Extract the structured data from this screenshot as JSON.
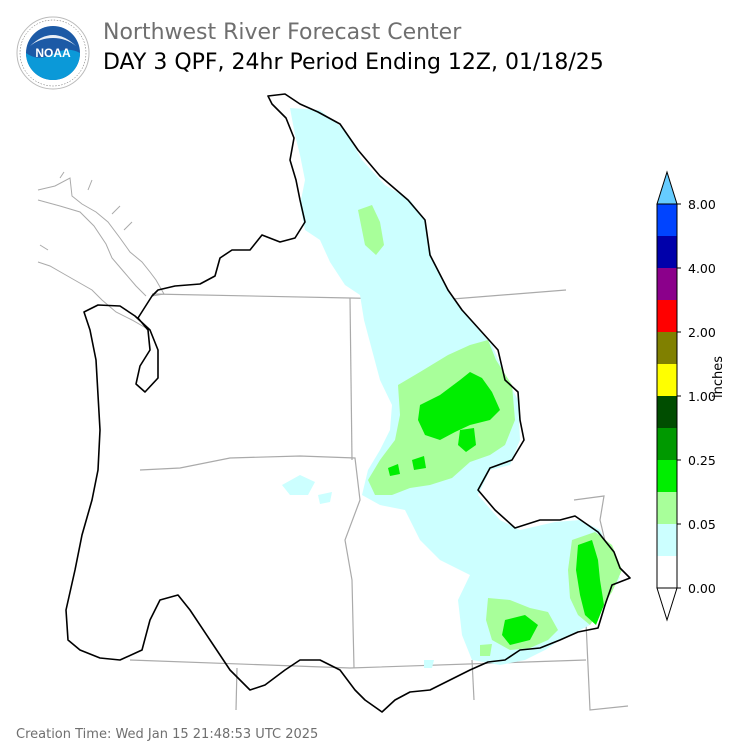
{
  "header": {
    "title": "Northwest River Forecast Center",
    "subtitle": "DAY 3 QPF, 24hr Period Ending 12Z, 01/18/25"
  },
  "logo": {
    "text": "NOAA",
    "ring_text": "NATIONAL OCEANIC AND ATMOSPHERIC ADMINISTRATION · U.S. DEPARTMENT OF COMMERCE"
  },
  "legend": {
    "unit": "inches",
    "tick_labels": [
      "8.00",
      "4.00",
      "2.00",
      "1.00",
      "0.25",
      "0.05",
      "0.00"
    ],
    "colors": [
      "#ffffff",
      "#ccffff",
      "#a8ff9a",
      "#00ee00",
      "#009900",
      "#004d00",
      "#ffff00",
      "#808000",
      "#ff0000",
      "#8b008b",
      "#0000aa",
      "#0044ff",
      "#66ccff"
    ]
  },
  "footer": {
    "creation": "Creation Time: Wed Jan 15 21:48:53 UTC 2025"
  },
  "colors": {
    "light_cyan": "#ccffff",
    "light_green": "#a8ff9a",
    "green": "#00ee00",
    "boundary": "#000000",
    "state_lines": "#aaaaaa"
  }
}
